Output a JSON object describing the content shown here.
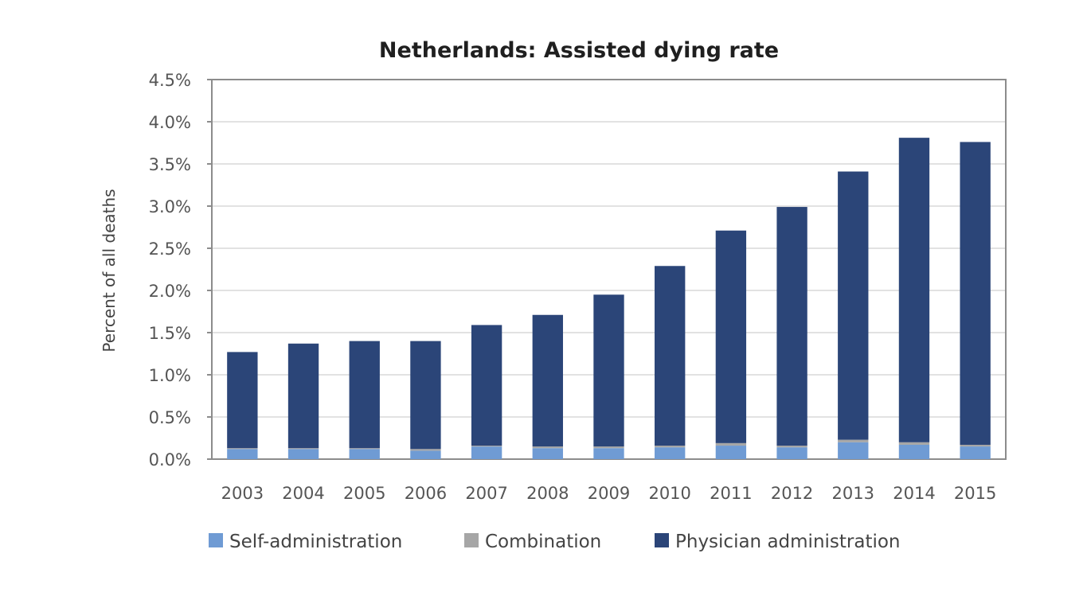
{
  "chart_data": {
    "type": "bar",
    "stacked": true,
    "title": "Netherlands: Assisted dying rate",
    "xlabel": "",
    "ylabel": "Percent of all deaths",
    "categories": [
      "2003",
      "2004",
      "2005",
      "2006",
      "2007",
      "2008",
      "2009",
      "2010",
      "2011",
      "2012",
      "2013",
      "2014",
      "2015"
    ],
    "y_ticks": [
      "0.0%",
      "0.5%",
      "1.0%",
      "1.5%",
      "2.0%",
      "2.5%",
      "3.0%",
      "3.5%",
      "4.0%",
      "4.5%"
    ],
    "ylim": [
      0,
      4.5
    ],
    "grid": true,
    "legend_position": "bottom",
    "series": [
      {
        "name": "Self-administration",
        "color": "#6f9bd4",
        "values": [
          0.12,
          0.12,
          0.12,
          0.1,
          0.15,
          0.13,
          0.13,
          0.14,
          0.16,
          0.14,
          0.2,
          0.17,
          0.15
        ]
      },
      {
        "name": "Combination",
        "color": "#a6a6a6",
        "values": [
          0.01,
          0.01,
          0.01,
          0.02,
          0.01,
          0.02,
          0.02,
          0.02,
          0.03,
          0.02,
          0.03,
          0.03,
          0.02
        ]
      },
      {
        "name": "Physician administration",
        "color": "#2b4578",
        "values": [
          1.14,
          1.24,
          1.27,
          1.28,
          1.43,
          1.56,
          1.8,
          2.13,
          2.52,
          2.83,
          3.18,
          3.61,
          3.59
        ]
      }
    ]
  }
}
